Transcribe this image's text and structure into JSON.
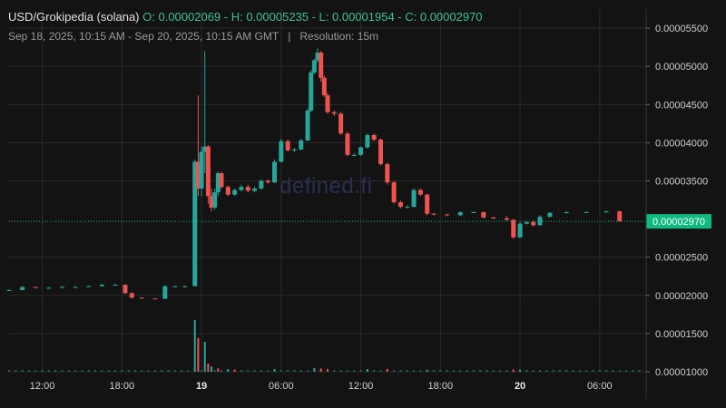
{
  "header": {
    "pair": "USD/Grokipedia (solana)",
    "ohlc": "O: 0.00002069 - H: 0.00005235 - L: 0.00001954 - C: 0.00002970",
    "range": "Sep 18, 2025, 10:15 AM - Sep 20, 2025, 10:15 AM GMT",
    "separator": "|",
    "resolution": "Resolution: 15m"
  },
  "watermark": "defined.fi",
  "colors": {
    "up": "#26a69a",
    "down": "#ef5350",
    "grid": "#2a2a2a",
    "background": "#131313",
    "last_price": "#10b981"
  },
  "chart_data": {
    "type": "candlestick",
    "title": "USD/Grokipedia (solana)",
    "xlabel": "",
    "ylabel": "",
    "ylim": [
      1e-05,
      5.75e-05
    ],
    "grid": true,
    "last_price": 2.97e-05,
    "last_price_label": "0.00002970",
    "y_ticks": [
      {
        "v": 5.5e-05,
        "label": "0.00005500"
      },
      {
        "v": 5e-05,
        "label": "0.00005000"
      },
      {
        "v": 4.5e-05,
        "label": "0.00004500"
      },
      {
        "v": 4e-05,
        "label": "0.00004000"
      },
      {
        "v": 3.5e-05,
        "label": "0.00003500"
      },
      {
        "v": 2.5e-05,
        "label": "0.00002500"
      },
      {
        "v": 2e-05,
        "label": "0.00002000"
      },
      {
        "v": 1.5e-05,
        "label": "0.00001500"
      },
      {
        "v": 1e-05,
        "label": "0.00001000"
      }
    ],
    "x_ticks": [
      {
        "t": 2.5,
        "label": "12:00",
        "bold": false
      },
      {
        "t": 8.5,
        "label": "18:00",
        "bold": false
      },
      {
        "t": 14.5,
        "label": "19",
        "bold": true
      },
      {
        "t": 20.5,
        "label": "06:00",
        "bold": false
      },
      {
        "t": 26.5,
        "label": "12:00",
        "bold": false
      },
      {
        "t": 32.5,
        "label": "18:00",
        "bold": false
      },
      {
        "t": 38.5,
        "label": "20",
        "bold": true
      },
      {
        "t": 44.5,
        "label": "06:00",
        "bold": false
      }
    ],
    "x_range_hours": [
      0,
      48
    ],
    "candles": [
      {
        "t": 0.0,
        "o": 2.069,
        "h": 2.08,
        "l": 2.06,
        "c": 2.07
      },
      {
        "t": 1.0,
        "o": 2.07,
        "h": 2.12,
        "l": 2.07,
        "c": 2.11
      },
      {
        "t": 2.0,
        "o": 2.11,
        "h": 2.11,
        "l": 2.09,
        "c": 2.1
      },
      {
        "t": 3.0,
        "o": 2.1,
        "h": 2.11,
        "l": 2.09,
        "c": 2.1
      },
      {
        "t": 4.0,
        "o": 2.1,
        "h": 2.12,
        "l": 2.1,
        "c": 2.11
      },
      {
        "t": 5.0,
        "o": 2.11,
        "h": 2.12,
        "l": 2.1,
        "c": 2.11
      },
      {
        "t": 6.0,
        "o": 2.11,
        "h": 2.13,
        "l": 2.11,
        "c": 2.12
      },
      {
        "t": 7.0,
        "o": 2.12,
        "h": 2.15,
        "l": 2.12,
        "c": 2.14
      },
      {
        "t": 8.0,
        "o": 2.14,
        "h": 2.15,
        "l": 2.13,
        "c": 2.14
      },
      {
        "t": 8.75,
        "o": 2.14,
        "h": 2.14,
        "l": 2.02,
        "c": 2.03
      },
      {
        "t": 9.25,
        "o": 2.03,
        "h": 2.04,
        "l": 1.96,
        "c": 1.97
      },
      {
        "t": 10.0,
        "o": 1.97,
        "h": 1.97,
        "l": 1.954,
        "c": 1.96
      },
      {
        "t": 11.0,
        "o": 1.96,
        "h": 1.96,
        "l": 1.954,
        "c": 1.955
      },
      {
        "t": 11.75,
        "o": 1.955,
        "h": 2.13,
        "l": 1.955,
        "c": 2.12
      },
      {
        "t": 12.5,
        "o": 2.12,
        "h": 2.13,
        "l": 2.11,
        "c": 2.12
      },
      {
        "t": 13.25,
        "o": 2.12,
        "h": 2.13,
        "l": 2.11,
        "c": 2.12
      },
      {
        "t": 14.0,
        "o": 2.12,
        "h": 3.78,
        "l": 2.12,
        "c": 3.75
      },
      {
        "t": 14.25,
        "o": 3.75,
        "h": 4.62,
        "l": 3.3,
        "c": 3.4
      },
      {
        "t": 14.5,
        "o": 3.4,
        "h": 3.95,
        "l": 3.3,
        "c": 3.88
      },
      {
        "t": 14.75,
        "o": 3.88,
        "h": 5.2,
        "l": 3.6,
        "c": 3.95
      },
      {
        "t": 15.0,
        "o": 3.95,
        "h": 3.97,
        "l": 3.2,
        "c": 3.3
      },
      {
        "t": 15.25,
        "o": 3.3,
        "h": 3.4,
        "l": 3.1,
        "c": 3.15
      },
      {
        "t": 15.5,
        "o": 3.15,
        "h": 3.4,
        "l": 3.12,
        "c": 3.35
      },
      {
        "t": 15.75,
        "o": 3.35,
        "h": 3.62,
        "l": 3.3,
        "c": 3.6
      },
      {
        "t": 16.0,
        "o": 3.6,
        "h": 3.62,
        "l": 3.4,
        "c": 3.42
      },
      {
        "t": 16.5,
        "o": 3.42,
        "h": 3.44,
        "l": 3.3,
        "c": 3.32
      },
      {
        "t": 17.0,
        "o": 3.32,
        "h": 3.4,
        "l": 3.3,
        "c": 3.38
      },
      {
        "t": 17.5,
        "o": 3.38,
        "h": 3.45,
        "l": 3.36,
        "c": 3.42
      },
      {
        "t": 18.0,
        "o": 3.42,
        "h": 3.45,
        "l": 3.35,
        "c": 3.37
      },
      {
        "t": 18.5,
        "o": 3.37,
        "h": 3.42,
        "l": 3.35,
        "c": 3.4
      },
      {
        "t": 19.0,
        "o": 3.4,
        "h": 3.52,
        "l": 3.38,
        "c": 3.5
      },
      {
        "t": 19.5,
        "o": 3.5,
        "h": 3.52,
        "l": 3.46,
        "c": 3.48
      },
      {
        "t": 20.0,
        "o": 3.48,
        "h": 3.78,
        "l": 3.47,
        "c": 3.75
      },
      {
        "t": 20.5,
        "o": 3.75,
        "h": 4.05,
        "l": 3.74,
        "c": 4.02
      },
      {
        "t": 21.0,
        "o": 4.02,
        "h": 4.04,
        "l": 3.88,
        "c": 3.9
      },
      {
        "t": 21.5,
        "o": 3.9,
        "h": 3.93,
        "l": 3.88,
        "c": 3.91
      },
      {
        "t": 22.0,
        "o": 3.91,
        "h": 4.05,
        "l": 3.9,
        "c": 4.03
      },
      {
        "t": 22.5,
        "o": 4.03,
        "h": 4.45,
        "l": 4.02,
        "c": 4.42
      },
      {
        "t": 22.75,
        "o": 4.42,
        "h": 4.95,
        "l": 4.4,
        "c": 4.92
      },
      {
        "t": 23.0,
        "o": 4.92,
        "h": 5.1,
        "l": 4.9,
        "c": 5.08
      },
      {
        "t": 23.25,
        "o": 5.08,
        "h": 5.235,
        "l": 5.05,
        "c": 5.18
      },
      {
        "t": 23.5,
        "o": 5.18,
        "h": 5.2,
        "l": 4.8,
        "c": 4.85
      },
      {
        "t": 23.75,
        "o": 4.85,
        "h": 4.88,
        "l": 4.6,
        "c": 4.62
      },
      {
        "t": 24.0,
        "o": 4.62,
        "h": 4.65,
        "l": 4.38,
        "c": 4.4
      },
      {
        "t": 24.5,
        "o": 4.4,
        "h": 4.42,
        "l": 4.35,
        "c": 4.38
      },
      {
        "t": 25.0,
        "o": 4.38,
        "h": 4.4,
        "l": 4.1,
        "c": 4.12
      },
      {
        "t": 25.5,
        "o": 4.12,
        "h": 4.14,
        "l": 3.82,
        "c": 3.84
      },
      {
        "t": 26.0,
        "o": 3.84,
        "h": 3.86,
        "l": 3.82,
        "c": 3.84
      },
      {
        "t": 26.5,
        "o": 3.84,
        "h": 3.95,
        "l": 3.83,
        "c": 3.94
      },
      {
        "t": 27.0,
        "o": 3.94,
        "h": 4.12,
        "l": 3.92,
        "c": 4.1
      },
      {
        "t": 27.5,
        "o": 4.1,
        "h": 4.12,
        "l": 4.02,
        "c": 4.04
      },
      {
        "t": 28.0,
        "o": 4.04,
        "h": 4.06,
        "l": 3.7,
        "c": 3.72
      },
      {
        "t": 28.5,
        "o": 3.72,
        "h": 3.74,
        "l": 3.45,
        "c": 3.48
      },
      {
        "t": 29.0,
        "o": 3.48,
        "h": 3.5,
        "l": 3.2,
        "c": 3.22
      },
      {
        "t": 29.5,
        "o": 3.22,
        "h": 3.24,
        "l": 3.14,
        "c": 3.16
      },
      {
        "t": 30.0,
        "o": 3.16,
        "h": 3.18,
        "l": 3.14,
        "c": 3.16
      },
      {
        "t": 30.5,
        "o": 3.16,
        "h": 3.4,
        "l": 3.15,
        "c": 3.38
      },
      {
        "t": 31.0,
        "o": 3.38,
        "h": 3.4,
        "l": 3.3,
        "c": 3.32
      },
      {
        "t": 31.5,
        "o": 3.32,
        "h": 3.33,
        "l": 3.05,
        "c": 3.07
      },
      {
        "t": 32.0,
        "o": 3.07,
        "h": 3.08,
        "l": 3.05,
        "c": 3.06
      },
      {
        "t": 33.0,
        "o": 3.06,
        "h": 3.07,
        "l": 3.04,
        "c": 3.05
      },
      {
        "t": 34.0,
        "o": 3.05,
        "h": 3.1,
        "l": 3.04,
        "c": 3.09
      },
      {
        "t": 35.0,
        "o": 3.09,
        "h": 3.1,
        "l": 3.08,
        "c": 3.09
      },
      {
        "t": 35.75,
        "o": 3.09,
        "h": 3.1,
        "l": 3.01,
        "c": 3.02
      },
      {
        "t": 36.5,
        "o": 3.02,
        "h": 3.03,
        "l": 3.0,
        "c": 3.01
      },
      {
        "t": 37.5,
        "o": 3.01,
        "h": 3.04,
        "l": 2.98,
        "c": 2.99
      },
      {
        "t": 38.0,
        "o": 2.99,
        "h": 3.0,
        "l": 2.74,
        "c": 2.76
      },
      {
        "t": 38.5,
        "o": 2.76,
        "h": 2.96,
        "l": 2.75,
        "c": 2.94
      },
      {
        "t": 39.0,
        "o": 2.94,
        "h": 2.98,
        "l": 2.93,
        "c": 2.96
      },
      {
        "t": 39.5,
        "o": 2.96,
        "h": 2.98,
        "l": 2.9,
        "c": 2.92
      },
      {
        "t": 40.0,
        "o": 2.92,
        "h": 3.05,
        "l": 2.91,
        "c": 3.03
      },
      {
        "t": 40.75,
        "o": 3.03,
        "h": 3.09,
        "l": 3.02,
        "c": 3.08
      },
      {
        "t": 42.0,
        "o": 3.08,
        "h": 3.1,
        "l": 3.07,
        "c": 3.09
      },
      {
        "t": 43.5,
        "o": 3.09,
        "h": 3.1,
        "l": 3.08,
        "c": 3.09
      },
      {
        "t": 45.0,
        "o": 3.09,
        "h": 3.11,
        "l": 3.08,
        "c": 3.1
      },
      {
        "t": 46.0,
        "o": 3.1,
        "h": 3.11,
        "l": 2.96,
        "c": 2.97
      }
    ],
    "volume_spikes": [
      {
        "t": 14.0,
        "v": 0.95,
        "up": true
      },
      {
        "t": 14.25,
        "v": 0.62,
        "up": false
      },
      {
        "t": 14.75,
        "v": 0.55,
        "up": true
      },
      {
        "t": 15.0,
        "v": 0.15,
        "up": false
      },
      {
        "t": 15.25,
        "v": 0.1,
        "up": true
      },
      {
        "t": 15.75,
        "v": 0.06,
        "up": false
      },
      {
        "t": 16.5,
        "v": 0.05,
        "up": true
      },
      {
        "t": 17.0,
        "v": 0.04,
        "up": false
      },
      {
        "t": 20.0,
        "v": 0.05,
        "up": true
      },
      {
        "t": 23.0,
        "v": 0.07,
        "up": true
      },
      {
        "t": 23.5,
        "v": 0.06,
        "up": false
      },
      {
        "t": 24.0,
        "v": 0.05,
        "up": false
      },
      {
        "t": 27.0,
        "v": 0.05,
        "up": true
      },
      {
        "t": 28.5,
        "v": 0.05,
        "up": false
      },
      {
        "t": 31.5,
        "v": 0.04,
        "up": true
      },
      {
        "t": 38.0,
        "v": 0.04,
        "up": false
      },
      {
        "t": 38.5,
        "v": 0.04,
        "up": true
      }
    ]
  }
}
